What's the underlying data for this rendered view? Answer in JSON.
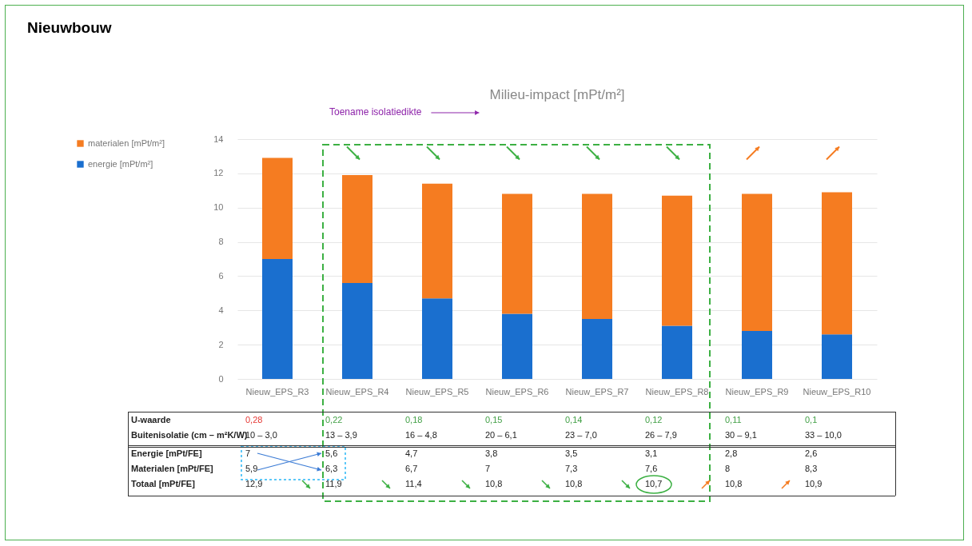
{
  "chart_data": {
    "type": "bar",
    "title": "Nieuwbouw",
    "subtitle": "Milieu-impact [mPt/m²]",
    "stacked": true,
    "categories": [
      "Nieuw_EPS_R3",
      "Nieuw_EPS_R4",
      "Nieuw_EPS_R5",
      "Nieuw_EPS_R6",
      "Nieuw_EPS_R7",
      "Nieuw_EPS_R8",
      "Nieuw_EPS_R9",
      "Nieuw_EPS_R10"
    ],
    "series": [
      {
        "name": "energie [mPt/m²]",
        "color": "#1a6fcf",
        "values": [
          7,
          5.6,
          4.7,
          3.8,
          3.5,
          3.1,
          2.8,
          2.6
        ],
        "value_labels": [
          "7",
          "5,6",
          "4,7",
          "3,8",
          "3,5",
          "3,1",
          "2,8",
          "2,6"
        ]
      },
      {
        "name": "materialen [mPt/m²]",
        "color": "#f57c21",
        "values": [
          5.9,
          6.3,
          6.7,
          7,
          7.3,
          7.6,
          8,
          8.3
        ],
        "value_labels": [
          "5,9",
          "6,3",
          "6,7",
          "7",
          "7,3",
          "7,6",
          "8",
          "8,3"
        ]
      }
    ],
    "ylim": [
      0,
      14
    ],
    "yticks": [
      0,
      2,
      4,
      6,
      8,
      10,
      12,
      14
    ],
    "grid": "y",
    "legend": "left",
    "annotations": [
      "Toename isolatiedikte",
      "U-waarde",
      "Buitenisolatie (cm – m²K/W)",
      "Energie [mPt/FE]",
      "Materialen [mPt/FE]",
      "Totaal [mPt/FE]",
      "0,28",
      "0,22",
      "0,18",
      "0,15",
      "0,14",
      "0,12",
      "0,11",
      "0,1",
      "10 – 3,0",
      "13 – 3,9",
      "16 – 4,8",
      "20 – 6,1",
      "23 – 7,0",
      "26 – 7,9",
      "30 – 9,1",
      "33 – 10,0",
      "12,9",
      "11,9",
      "11,4",
      "10,8",
      "10,8",
      "10,7",
      "10,8",
      "10,9"
    ]
  }
}
